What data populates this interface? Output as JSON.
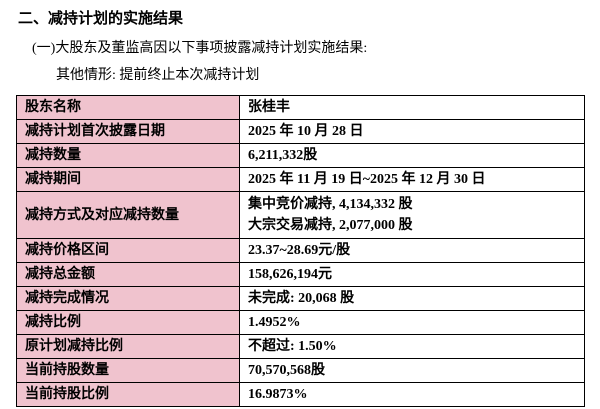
{
  "heading": "二、减持计划的实施结果",
  "subheading": "(一)大股东及董监高因以下事项披露减持计划实施结果:",
  "situation": "其他情形: 提前终止本次减持计划",
  "colors": {
    "label_bg": "#f0c3ce",
    "border": "#000000",
    "text": "#000000"
  },
  "table": {
    "rows": [
      {
        "label": "股东名称",
        "value": "张桂丰"
      },
      {
        "label": "减持计划首次披露日期",
        "value": "2025 年 10 月 28 日"
      },
      {
        "label": "减持数量",
        "value": "6,211,332股"
      },
      {
        "label": "减持期间",
        "value": "2025 年 11 月 19 日~2025 年 12 月 30 日"
      },
      {
        "label": "减持方式及对应减持数量",
        "value": "集中竞价减持, 4,134,332 股\n大宗交易减持, 2,077,000 股"
      },
      {
        "label": "减持价格区间",
        "value": "23.37~28.69元/股"
      },
      {
        "label": "减持总金额",
        "value": "158,626,194元"
      },
      {
        "label": "减持完成情况",
        "value": "未完成: 20,068 股"
      },
      {
        "label": "减持比例",
        "value": "1.4952%"
      },
      {
        "label": "原计划减持比例",
        "value": "不超过: 1.50%"
      },
      {
        "label": "当前持股数量",
        "value": "70,570,568股"
      },
      {
        "label": "当前持股比例",
        "value": "16.9873%"
      }
    ]
  }
}
